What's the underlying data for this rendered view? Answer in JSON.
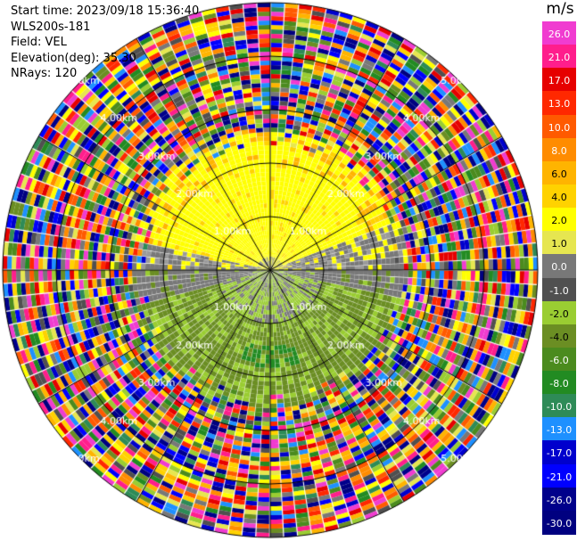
{
  "info": {
    "start_time": "Start time: 2023/09/18 15:36:40",
    "instrument": "WLS200s-181",
    "field": "Field: VEL",
    "elevation": "Elevation(deg): 35.30",
    "nrays": "NRays: 120"
  },
  "colorbar": {
    "unit": "m/s",
    "ticks": [
      "26.0",
      "21.0",
      "17.0",
      "13.0",
      "10.0",
      "8.0",
      "6.0",
      "4.0",
      "2.0",
      "1.0",
      "0.0",
      "-1.0",
      "-2.0",
      "-4.0",
      "-6.0",
      "-8.0",
      "-10.0",
      "-13.0",
      "-17.0",
      "-21.0",
      "-26.0",
      "-30.0"
    ],
    "colors": [
      "#f03cd0",
      "#ff1e8c",
      "#e60000",
      "#ff2800",
      "#ff5a00",
      "#ff8c00",
      "#ffb400",
      "#ffd200",
      "#ffff00",
      "#e6e650",
      "#787878",
      "#505050",
      "#9acd32",
      "#6b8e23",
      "#4b8b1e",
      "#228b22",
      "#2e8b57",
      "#1e90ff",
      "#0000cd",
      "#0000ff",
      "#00008b",
      "#000080"
    ]
  },
  "range_rings": {
    "labels": [
      "1.00km",
      "2.00km",
      "3.00km",
      "4.00km",
      "5.00km"
    ]
  }
}
